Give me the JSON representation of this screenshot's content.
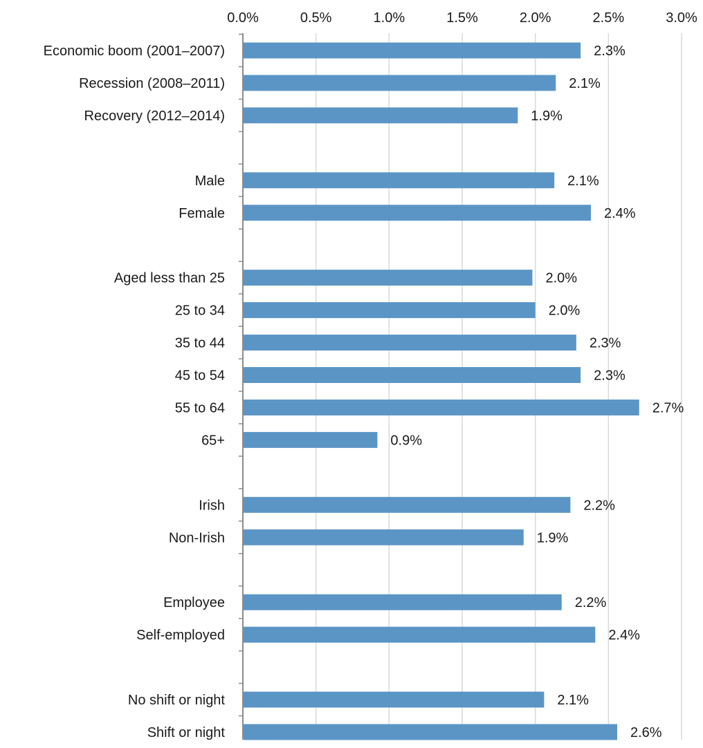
{
  "chart_data": {
    "type": "bar",
    "orientation": "horizontal",
    "title": "",
    "xlabel": "",
    "ylabel": "",
    "xlim": [
      0,
      3.0
    ],
    "x_ticks": [
      "0.0%",
      "0.5%",
      "1.0%",
      "1.5%",
      "2.0%",
      "2.5%",
      "3.0%"
    ],
    "x_axis_position": "top",
    "grid": "vertical",
    "legend": "none",
    "bar_color": "#5b95c6",
    "categories": [
      "Economic boom (2001–2007)",
      "Recession (2008–2011)",
      "Recovery (2012–2014)",
      "",
      "Male",
      "Female",
      "",
      "Aged less than 25",
      "25 to 34",
      "35 to 44",
      "45 to 54",
      "55 to 64",
      "65+",
      "",
      "Irish",
      "Non-Irish",
      "",
      "Employee",
      "Self-employed",
      "",
      "No shift or night",
      "Shift or night"
    ],
    "values": [
      2.31,
      2.14,
      1.88,
      null,
      2.13,
      2.38,
      null,
      1.98,
      2.0,
      2.28,
      2.31,
      2.71,
      0.92,
      null,
      2.24,
      1.92,
      null,
      2.18,
      2.41,
      null,
      2.06,
      2.56
    ],
    "data_labels": [
      "2.3%",
      "2.1%",
      "1.9%",
      "",
      "2.1%",
      "2.4%",
      "",
      "2.0%",
      "2.0%",
      "2.3%",
      "2.3%",
      "2.7%",
      "0.9%",
      "",
      "2.2%",
      "1.9%",
      "",
      "2.2%",
      "2.4%",
      "",
      "2.1%",
      "2.6%"
    ]
  }
}
